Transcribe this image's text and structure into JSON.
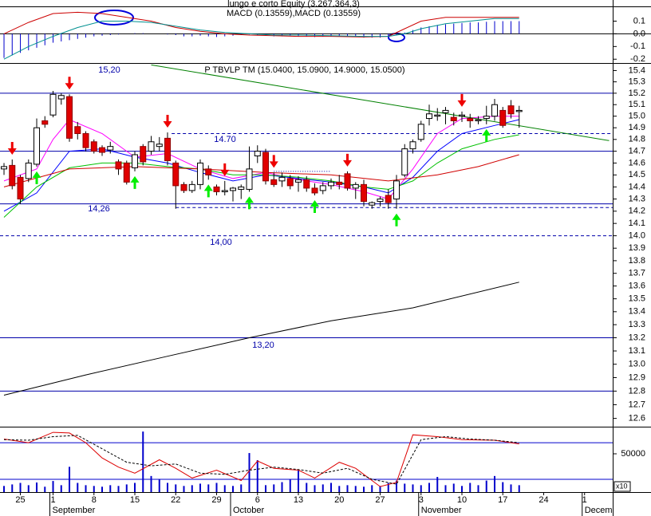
{
  "chart_data": [
    {
      "type": "bar",
      "title": "lungo e corto Equity (3.267.364,3)",
      "subtitle": "MACD (0.13559),MACD (0.13559)",
      "ylim": [
        -0.23,
        0.21
      ],
      "yticks": [
        0.1,
        {
          "value": 0,
          "label": "0.0"
        },
        -0.1,
        -0.2
      ],
      "color": "#0000cc",
      "values": [
        -0.19,
        -0.17,
        -0.15,
        -0.13,
        -0.11,
        -0.09,
        -0.07,
        -0.06,
        -0.05,
        -0.04,
        -0.03,
        -0.02,
        -0.015,
        -0.01,
        -0.005,
        0,
        0.005,
        0.005,
        0,
        0,
        -0.005,
        -0.01,
        -0.02,
        -0.02,
        -0.015,
        -0.02,
        -0.025,
        -0.02,
        -0.015,
        -0.01,
        -0.005,
        -0.01,
        -0.015,
        -0.02,
        -0.02,
        -0.015,
        -0.02,
        -0.02,
        -0.025,
        -0.02,
        -0.02,
        -0.015,
        -0.02,
        -0.025,
        -0.03,
        -0.03,
        -0.03,
        -0.025,
        -0.01,
        0.01,
        0.03,
        0.05,
        0.06,
        0.07,
        0.075,
        0.08,
        0.085,
        0.09,
        0.09,
        0.095,
        0.1,
        0.1,
        0.1,
        0.1
      ],
      "series": [
        {
          "color": "#cc0000",
          "x": [
            0,
            3,
            6,
            9,
            12,
            15,
            18,
            21,
            24,
            27,
            30,
            33,
            36,
            40,
            44,
            47,
            49,
            51,
            54,
            57,
            60,
            63
          ],
          "values": [
            0.0,
            0.09,
            0.16,
            0.17,
            0.16,
            0.13,
            0.1,
            0.05,
            0.02,
            0.0,
            -0.01,
            -0.015,
            -0.02,
            -0.02,
            -0.025,
            -0.02,
            0.04,
            0.1,
            0.13,
            0.13,
            0.13,
            0.13
          ]
        },
        {
          "color": "#009090",
          "x": [
            0,
            3,
            6,
            9,
            12,
            15,
            18,
            21,
            24,
            27,
            30,
            33,
            36,
            40,
            44,
            47,
            49,
            51,
            54,
            57,
            60,
            63
          ],
          "values": [
            -0.2,
            -0.1,
            -0.02,
            0.05,
            0.1,
            0.1,
            0.09,
            0.06,
            0.03,
            0.01,
            0.0,
            -0.01,
            -0.01,
            -0.015,
            -0.02,
            -0.02,
            0.0,
            0.04,
            0.08,
            0.1,
            0.12,
            0.12
          ]
        }
      ]
    },
    {
      "type": "candlestick",
      "title": "P TBVLP TM (15.0400, 15.0900, 14.9000, 15.0500)",
      "log_scale": true,
      "ylim": [
        12.54,
        15.46
      ],
      "yticks": [
        15.4,
        15.3,
        15.2,
        15.1,
        {
          "value": 15,
          "label": "15.0"
        },
        14.9,
        14.8,
        14.7,
        14.6,
        14.5,
        14.4,
        14.3,
        14.2,
        14.1,
        {
          "value": 14,
          "label": "14.0"
        },
        13.9,
        13.8,
        13.7,
        13.6,
        13.5,
        13.4,
        13.3,
        13.2,
        13.1,
        {
          "value": 13,
          "label": "13.0"
        },
        12.9,
        12.8,
        12.7,
        12.6
      ],
      "up_color": "#ffffff",
      "down_color": "#e00000",
      "open": [
        14.55,
        14.58,
        14.48,
        14.47,
        14.59,
        14.96,
        15.01,
        15.15,
        15.17,
        14.91,
        14.85,
        14.78,
        14.73,
        14.71,
        14.61,
        14.6,
        14.56,
        14.74,
        14.7,
        14.74,
        14.81,
        14.6,
        14.42,
        14.37,
        14.42,
        14.55,
        14.4,
        14.36,
        14.37,
        14.38,
        14.38,
        14.66,
        14.69,
        14.46,
        14.45,
        14.47,
        14.44,
        14.46,
        14.39,
        14.37,
        14.41,
        14.44,
        14.51,
        14.39,
        14.42,
        14.25,
        14.28,
        14.33,
        14.3,
        14.5,
        14.72,
        14.8,
        14.98,
        15.0,
        15.03,
        14.99,
        15.0,
        14.98,
        14.96,
        14.98,
        15.0,
        15.05,
        15.09,
        15.04
      ],
      "high": [
        14.6,
        14.63,
        14.5,
        14.63,
        14.98,
        15.0,
        15.22,
        15.2,
        15.19,
        14.95,
        14.87,
        14.8,
        14.75,
        14.78,
        14.63,
        14.62,
        14.7,
        14.76,
        14.83,
        14.82,
        14.86,
        14.62,
        14.44,
        14.45,
        14.63,
        14.58,
        14.42,
        14.45,
        14.4,
        14.42,
        14.74,
        14.75,
        14.72,
        14.52,
        14.52,
        14.5,
        14.49,
        14.49,
        14.43,
        14.44,
        14.47,
        14.5,
        14.53,
        14.44,
        14.46,
        14.28,
        14.32,
        14.38,
        14.5,
        14.76,
        14.8,
        14.96,
        15.1,
        15.07,
        15.08,
        15.03,
        15.04,
        15.02,
        15.0,
        15.09,
        15.15,
        15.08,
        15.14,
        15.09
      ],
      "low": [
        14.5,
        14.38,
        14.26,
        14.44,
        14.57,
        14.9,
        14.99,
        15.1,
        14.78,
        14.8,
        14.7,
        14.68,
        14.66,
        14.68,
        14.5,
        14.42,
        14.53,
        14.58,
        14.67,
        14.7,
        14.58,
        14.22,
        14.35,
        14.35,
        14.38,
        14.46,
        14.33,
        14.33,
        14.28,
        14.3,
        14.36,
        14.6,
        14.42,
        14.4,
        14.4,
        14.38,
        14.36,
        14.36,
        14.33,
        14.34,
        14.38,
        14.38,
        14.37,
        14.3,
        14.24,
        14.22,
        14.24,
        14.22,
        14.22,
        14.48,
        14.68,
        14.78,
        14.92,
        14.96,
        14.93,
        14.92,
        14.95,
        14.9,
        14.93,
        14.93,
        14.96,
        14.9,
        14.98,
        14.9
      ],
      "close": [
        14.57,
        14.41,
        14.3,
        14.6,
        14.9,
        14.93,
        15.19,
        15.18,
        14.81,
        14.85,
        14.73,
        14.7,
        14.69,
        14.74,
        14.55,
        14.44,
        14.67,
        14.61,
        14.78,
        14.76,
        14.62,
        14.41,
        14.37,
        14.42,
        14.6,
        14.5,
        14.36,
        14.37,
        14.39,
        14.4,
        14.55,
        14.7,
        14.45,
        14.42,
        14.48,
        14.41,
        14.46,
        14.39,
        14.35,
        14.41,
        14.44,
        14.42,
        14.39,
        14.42,
        14.28,
        14.27,
        14.3,
        14.27,
        14.45,
        14.72,
        14.78,
        14.93,
        15.02,
        15.01,
        15.05,
        14.96,
        15.01,
        14.96,
        14.97,
        15.0,
        15.1,
        14.92,
        15.02,
        15.05
      ],
      "series": [
        {
          "color": "#ff00ff",
          "x": [
            0,
            4,
            6,
            8,
            12,
            16,
            20,
            24,
            28,
            32,
            36,
            40,
            44,
            47,
            50,
            53,
            56,
            60,
            63
          ],
          "values": [
            14.45,
            14.55,
            14.8,
            14.97,
            14.85,
            14.65,
            14.68,
            14.55,
            14.47,
            14.52,
            14.46,
            14.42,
            14.36,
            14.3,
            14.55,
            14.85,
            14.98,
            15.0,
            15.0
          ]
        },
        {
          "color": "#0000ff",
          "x": [
            0,
            4,
            8,
            12,
            16,
            20,
            24,
            28,
            32,
            36,
            40,
            44,
            47,
            50,
            53,
            56,
            60,
            63
          ],
          "values": [
            14.2,
            14.35,
            14.7,
            14.72,
            14.65,
            14.6,
            14.52,
            14.45,
            14.5,
            14.47,
            14.44,
            14.4,
            14.35,
            14.48,
            14.7,
            14.85,
            14.92,
            14.97
          ]
        },
        {
          "color": "#00c000",
          "x": [
            0,
            4,
            8,
            12,
            16,
            20,
            24,
            28,
            32,
            36,
            40,
            44,
            47,
            50,
            53,
            56,
            60,
            63
          ],
          "values": [
            14.15,
            14.4,
            14.56,
            14.6,
            14.6,
            14.57,
            14.55,
            14.5,
            14.5,
            14.48,
            14.45,
            14.4,
            14.38,
            14.45,
            14.6,
            14.72,
            14.8,
            14.84
          ]
        },
        {
          "color": "#d00000",
          "x": [
            0,
            8,
            16,
            24,
            32,
            40,
            47,
            53,
            58,
            63
          ],
          "values": [
            14.4,
            14.55,
            14.57,
            14.55,
            14.52,
            14.5,
            14.45,
            14.5,
            14.57,
            14.67
          ]
        },
        {
          "color": "#000000",
          "x": [
            0,
            10,
            20,
            30,
            40,
            50,
            63
          ],
          "values": [
            12.77,
            12.92,
            13.06,
            13.2,
            13.33,
            13.43,
            13.63
          ]
        },
        {
          "color": "#008000",
          "x": [
            18,
            74
          ],
          "values": [
            15.45,
            14.79
          ]
        }
      ],
      "levels_color": "#0000aa",
      "levels": [
        {
          "value": 15.2,
          "label": "15,20",
          "style": "solid"
        },
        {
          "value": 14.85,
          "style": "dashed",
          "x": [
            20.5,
            74.44
          ]
        },
        {
          "value": 14.7,
          "label": "14.70",
          "style": "solid"
        },
        {
          "value": 14.26,
          "label": "14,26",
          "style": "solid"
        },
        {
          "value": 14.23,
          "style": "dashed",
          "x": [
            21,
            74.44
          ]
        },
        {
          "value": 14.53,
          "style": "dotted",
          "x": [
            33,
            40
          ]
        },
        {
          "value": 14,
          "label": "14,00",
          "style": "dashed"
        },
        {
          "value": 13.2,
          "label": "13,20",
          "style": "solid"
        },
        {
          "value": 12.8,
          "style": "solid"
        }
      ],
      "sell_signals": [
        1,
        8,
        20,
        27,
        33,
        42,
        56
      ],
      "sell_color": "#ee0000",
      "buy_signals": [
        4,
        16,
        25,
        30,
        38,
        48,
        59
      ],
      "buy_color": "#00ee00"
    },
    {
      "type": "bar",
      "ylim": [
        0,
        84400
      ],
      "yticks": [
        50000
      ],
      "scale_label": "x10",
      "color": "#0000cc",
      "values": [
        8000,
        10000,
        12000,
        9000,
        12500,
        7000,
        14500,
        9000,
        33000,
        12000,
        9000,
        8000,
        7000,
        9000,
        8000,
        10000,
        12000,
        79000,
        21000,
        16700,
        12000,
        10000,
        8000,
        9000,
        11000,
        10000,
        12000,
        9000,
        8000,
        10000,
        51000,
        41700,
        9000,
        10000,
        13000,
        17000,
        28000,
        12000,
        9000,
        10000,
        12000,
        8000,
        9000,
        8000,
        7000,
        9000,
        8000,
        12000,
        15000,
        11000,
        10000,
        9000,
        12000,
        19800,
        9000,
        11000,
        8000,
        12000,
        9000,
        15000,
        21000,
        13000,
        10000,
        9000
      ],
      "y2lim": [
        -1,
        105
      ],
      "levels": [
        80,
        20
      ],
      "levels_color": "#0000cc",
      "series": [
        {
          "axis": "y2",
          "color": "#dd0000",
          "x": [
            0,
            3,
            6,
            8,
            10,
            12,
            14,
            16,
            19,
            21,
            23,
            26,
            29,
            31,
            33,
            36,
            38,
            41,
            43,
            46,
            48,
            50,
            53,
            56,
            60,
            63
          ],
          "values": [
            86,
            80,
            97,
            96,
            80,
            55,
            40,
            30,
            52,
            38,
            22,
            35,
            18,
            50,
            38,
            35,
            22,
            48,
            38,
            8,
            15,
            93,
            90,
            85,
            84,
            78
          ]
        },
        {
          "axis": "y2",
          "color": "#000000",
          "dashed": true,
          "x": [
            0,
            3,
            6,
            9,
            12,
            15,
            18,
            21,
            24,
            27,
            30,
            33,
            36,
            39,
            42,
            45,
            48,
            51,
            54,
            57,
            60,
            63
          ],
          "values": [
            85,
            84,
            90,
            92,
            70,
            48,
            42,
            45,
            30,
            28,
            35,
            40,
            36,
            30,
            38,
            20,
            12,
            85,
            90,
            86,
            84,
            80
          ]
        }
      ],
      "x_axis": {
        "xlim": [
          -0.49,
          74.44
        ],
        "xticks": [
          {
            "value": 2,
            "label": "25"
          },
          {
            "value": 6,
            "label": "1"
          },
          {
            "value": 11,
            "label": "8"
          },
          {
            "value": 16,
            "label": "15"
          },
          {
            "value": 21,
            "label": "22"
          },
          {
            "value": 26,
            "label": "29"
          },
          {
            "value": 31,
            "label": "6"
          },
          {
            "value": 36,
            "label": "13"
          },
          {
            "value": 41,
            "label": "20"
          },
          {
            "value": 46,
            "label": "27"
          },
          {
            "value": 51,
            "label": "3"
          },
          {
            "value": 56,
            "label": "10"
          },
          {
            "value": 61,
            "label": "17"
          },
          {
            "value": 66,
            "label": "24"
          },
          {
            "value": 71,
            "label": "1"
          }
        ],
        "month_ticks": [
          {
            "value": 5.9,
            "label": "September"
          },
          {
            "value": 28,
            "label": "October"
          },
          {
            "value": 51,
            "label": "November"
          },
          {
            "value": 71,
            "label": "Decem"
          }
        ]
      }
    }
  ]
}
